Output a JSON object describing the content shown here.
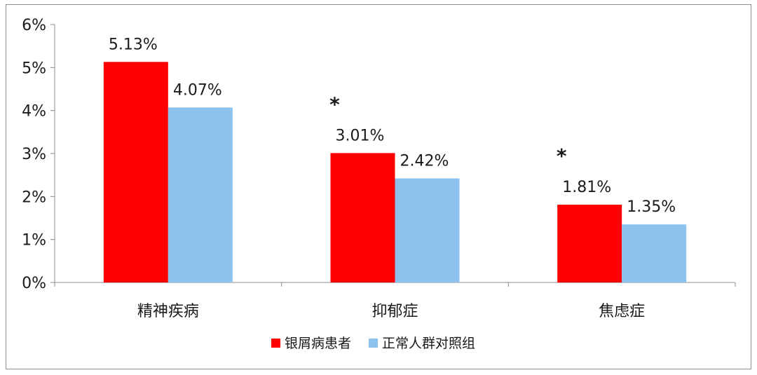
{
  "chart_data": {
    "type": "bar",
    "categories": [
      "精神疾病",
      "抑郁症",
      "焦虑症"
    ],
    "series": [
      {
        "name": "银屑病患者",
        "color": "#ff0000",
        "values": [
          5.13,
          3.01,
          1.81
        ],
        "labels": [
          "5.13%",
          "3.01%",
          "1.81%"
        ]
      },
      {
        "name": "正常人群对照组",
        "color": "#8ec2ee",
        "values": [
          4.07,
          2.42,
          1.35
        ],
        "labels": [
          "4.07%",
          "2.42%",
          "1.35%"
        ]
      }
    ],
    "ylim": [
      0,
      6
    ],
    "yticks": [
      "0%",
      "1%",
      "2%",
      "3%",
      "4%",
      "5%",
      "6%"
    ],
    "annotations": [
      {
        "category": "抑郁症",
        "text": "*"
      },
      {
        "category": "焦虑症",
        "text": "*"
      }
    ],
    "legend_position": "bottom",
    "grid": false
  }
}
